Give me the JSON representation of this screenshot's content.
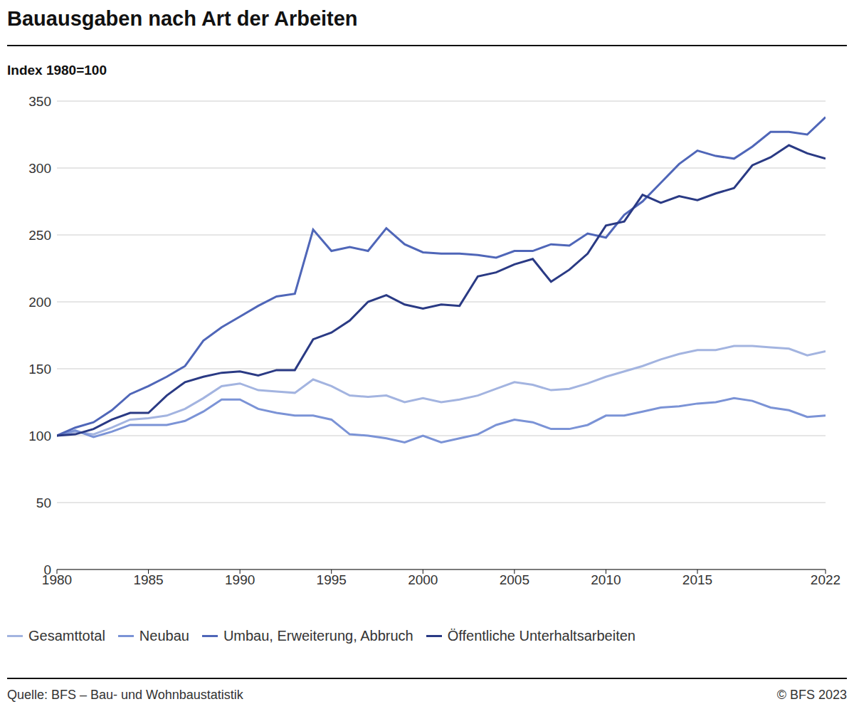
{
  "chart_data": {
    "type": "line",
    "title": "Bauausgaben nach Art der Arbeiten",
    "subtitle": "Index 1980=100",
    "x": [
      1980,
      1981,
      1982,
      1983,
      1984,
      1985,
      1986,
      1987,
      1988,
      1989,
      1990,
      1991,
      1992,
      1993,
      1994,
      1995,
      1996,
      1997,
      1998,
      1999,
      2000,
      2001,
      2002,
      2003,
      2004,
      2005,
      2006,
      2007,
      2008,
      2009,
      2010,
      2011,
      2012,
      2013,
      2014,
      2015,
      2016,
      2017,
      2018,
      2019,
      2020,
      2021,
      2022
    ],
    "series": [
      {
        "name": "Gesamttotal",
        "color": "#a3b4e0",
        "values": [
          100,
          103,
          101,
          106,
          112,
          113,
          115,
          120,
          128,
          137,
          139,
          134,
          133,
          132,
          142,
          137,
          130,
          129,
          130,
          125,
          128,
          125,
          127,
          130,
          135,
          140,
          138,
          134,
          135,
          139,
          144,
          148,
          152,
          157,
          161,
          164,
          164,
          167,
          167,
          166,
          165,
          160,
          163
        ]
      },
      {
        "name": "Neubau",
        "color": "#7b93d6",
        "values": [
          100,
          104,
          99,
          103,
          108,
          108,
          108,
          111,
          118,
          127,
          127,
          120,
          117,
          115,
          115,
          112,
          101,
          100,
          98,
          95,
          100,
          95,
          98,
          101,
          108,
          112,
          110,
          105,
          105,
          108,
          115,
          115,
          118,
          121,
          122,
          124,
          125,
          128,
          126,
          121,
          119,
          114,
          115
        ]
      },
      {
        "name": "Umbau, Erweiterung, Abbruch",
        "color": "#4f66b8",
        "values": [
          100,
          106,
          110,
          119,
          131,
          137,
          144,
          152,
          171,
          181,
          189,
          197,
          204,
          206,
          254,
          238,
          241,
          238,
          255,
          243,
          237,
          236,
          236,
          235,
          233,
          238,
          238,
          243,
          242,
          251,
          248,
          265,
          275,
          289,
          303,
          313,
          309,
          307,
          316,
          327,
          327,
          325,
          338
        ]
      },
      {
        "name": "Öffentliche Unterhaltsarbeiten",
        "color": "#2a3a84",
        "values": [
          100,
          101,
          105,
          112,
          117,
          117,
          130,
          140,
          144,
          147,
          148,
          145,
          149,
          149,
          172,
          177,
          186,
          200,
          205,
          198,
          195,
          198,
          197,
          219,
          222,
          228,
          232,
          215,
          224,
          236,
          257,
          260,
          280,
          274,
          279,
          276,
          281,
          285,
          302,
          308,
          317,
          311,
          307
        ]
      }
    ],
    "xlim": [
      1980,
      2022
    ],
    "xticks": [
      1980,
      1985,
      1990,
      1995,
      2000,
      2005,
      2010,
      2015,
      2022
    ],
    "ylim": [
      0,
      350
    ],
    "yticks": [
      0,
      50,
      100,
      150,
      200,
      250,
      300,
      350
    ],
    "grid": true,
    "legend": "bottom",
    "source": "Quelle: BFS – Bau- und Wohnbaustatistik",
    "copyright": "© BFS 2023"
  }
}
